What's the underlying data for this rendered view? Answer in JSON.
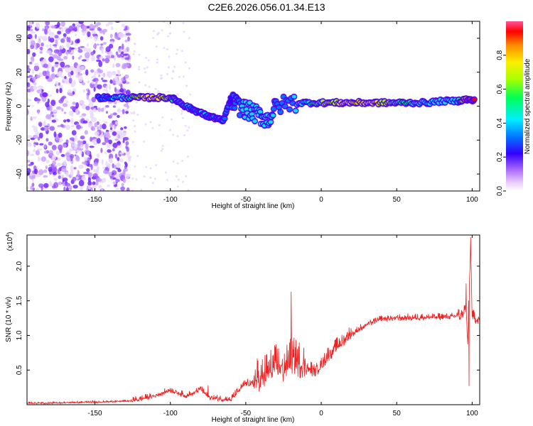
{
  "title": "C2E6.2026.056.01.34.E13",
  "chart_data": [
    {
      "type": "heatmap",
      "xlabel": "Height of straight line (km)",
      "ylabel": "Frequency (Hz)",
      "xlim": [
        -195,
        105
      ],
      "ylim": [
        -50,
        50
      ],
      "x_ticks": [
        -150,
        -100,
        -50,
        0,
        50,
        100
      ],
      "y_ticks": [
        -40,
        -20,
        0,
        20,
        40
      ],
      "colorbar": {
        "label": "Normalized spectral amplitude",
        "range": [
          0,
          1
        ],
        "ticks": [
          0.0,
          0.2,
          0.4,
          0.6,
          0.8
        ],
        "colors": [
          "#ffffff",
          "#cc99ff",
          "#6600ff",
          "#0000ff",
          "#00ccff",
          "#00ff66",
          "#99ff00",
          "#ffff00",
          "#ff9900",
          "#ff0000",
          "#ff66aa"
        ]
      },
      "ridge": [
        {
          "x": -148,
          "freq": 5,
          "amp": 0.35
        },
        {
          "x": -140,
          "freq": 5,
          "amp": 0.4
        },
        {
          "x": -130,
          "freq": 5,
          "amp": 0.55
        },
        {
          "x": -120,
          "freq": 5,
          "amp": 0.75
        },
        {
          "x": -110,
          "freq": 5,
          "amp": 0.8
        },
        {
          "x": -100,
          "freq": 5,
          "amp": 0.7
        },
        {
          "x": -95,
          "freq": 3,
          "amp": 0.45
        },
        {
          "x": -90,
          "freq": 0,
          "amp": 0.45
        },
        {
          "x": -85,
          "freq": -2,
          "amp": 0.4
        },
        {
          "x": -80,
          "freq": -4,
          "amp": 0.45
        },
        {
          "x": -75,
          "freq": -6,
          "amp": 0.4
        },
        {
          "x": -70,
          "freq": -7,
          "amp": 0.45
        },
        {
          "x": -65,
          "freq": -9,
          "amp": 0.4
        },
        {
          "x": -60,
          "freq": 4,
          "amp": 0.3
        },
        {
          "x": -55,
          "freq": 0,
          "amp": 0.4
        },
        {
          "x": -50,
          "freq": -2,
          "amp": 0.45
        },
        {
          "x": -45,
          "freq": -4,
          "amp": 0.5
        },
        {
          "x": -40,
          "freq": -6,
          "amp": 0.5
        },
        {
          "x": -35,
          "freq": -8,
          "amp": 0.45
        },
        {
          "x": -30,
          "freq": 0,
          "amp": 0.4
        },
        {
          "x": -20,
          "freq": 2,
          "amp": 0.4
        },
        {
          "x": -10,
          "freq": 2,
          "amp": 0.5
        },
        {
          "x": 0,
          "freq": 2,
          "amp": 0.65
        },
        {
          "x": 10,
          "freq": 2,
          "amp": 0.75
        },
        {
          "x": 20,
          "freq": 2,
          "amp": 0.8
        },
        {
          "x": 30,
          "freq": 2,
          "amp": 0.8
        },
        {
          "x": 40,
          "freq": 2,
          "amp": 0.75
        },
        {
          "x": 50,
          "freq": 2,
          "amp": 0.6
        },
        {
          "x": 60,
          "freq": 2,
          "amp": 0.55
        },
        {
          "x": 70,
          "freq": 2,
          "amp": 0.5
        },
        {
          "x": 80,
          "freq": 3,
          "amp": 0.45
        },
        {
          "x": 90,
          "freq": 3,
          "amp": 0.5
        },
        {
          "x": 96,
          "freq": 4,
          "amp": 0.9
        },
        {
          "x": 102,
          "freq": 3,
          "amp": 0.95
        }
      ]
    },
    {
      "type": "line",
      "xlabel": "Height of straight line (km)",
      "ylabel": "SNR (10 * v/v)",
      "y_multiplier": "(x10",
      "y_multiplier_exp": "4",
      "y_multiplier_close": ")",
      "xlim": [
        -195,
        105
      ],
      "ylim": [
        0,
        2.45
      ],
      "x_ticks": [
        -150,
        -100,
        -50,
        0,
        50,
        100
      ],
      "y_ticks": [
        0.5,
        1.0,
        1.5,
        2.0
      ],
      "color": "#ee2222",
      "x": [
        -195,
        -180,
        -160,
        -140,
        -125,
        -120,
        -110,
        -100,
        -95,
        -90,
        -85,
        -80,
        -75,
        -70,
        -60,
        -50,
        -45,
        -40,
        -35,
        -30,
        -25,
        -20,
        -15,
        -10,
        -5,
        0,
        5,
        10,
        20,
        30,
        40,
        50,
        60,
        70,
        80,
        85,
        88,
        90,
        92,
        94,
        96,
        97,
        98,
        99,
        100,
        102,
        105
      ],
      "y": [
        0.02,
        0.02,
        0.03,
        0.04,
        0.05,
        0.07,
        0.12,
        0.2,
        0.16,
        0.12,
        0.15,
        0.22,
        0.1,
        0.08,
        0.06,
        0.3,
        0.28,
        0.3,
        0.4,
        0.5,
        0.45,
        0.6,
        0.55,
        0.5,
        0.45,
        0.55,
        0.7,
        0.8,
        1.0,
        1.15,
        1.22,
        1.24,
        1.24,
        1.25,
        1.25,
        1.26,
        1.26,
        1.28,
        1.25,
        1.3,
        1.4,
        0.8,
        1.6,
        2.3,
        1.25,
        1.22,
        1.22
      ],
      "peaks": [
        {
          "x": -20,
          "y": 1.63
        },
        {
          "x": -75,
          "y": 0.28
        },
        {
          "x": -100,
          "y": 0.24
        },
        {
          "x": 96,
          "y": 1.75
        },
        {
          "x": 99,
          "y": 2.42
        },
        {
          "x": 98,
          "y": 0.27
        }
      ],
      "noise": [
        {
          "x0": -195,
          "x1": -125,
          "amp": 0.02
        },
        {
          "x0": -125,
          "x1": -60,
          "amp": 0.06
        },
        {
          "x0": -60,
          "x1": -45,
          "amp": 0.08
        },
        {
          "x0": -45,
          "x1": -10,
          "amp": 0.35
        },
        {
          "x0": -10,
          "x1": 20,
          "amp": 0.15
        },
        {
          "x0": 20,
          "x1": 90,
          "amp": 0.07
        },
        {
          "x0": 90,
          "x1": 105,
          "amp": 0.12
        }
      ]
    }
  ]
}
